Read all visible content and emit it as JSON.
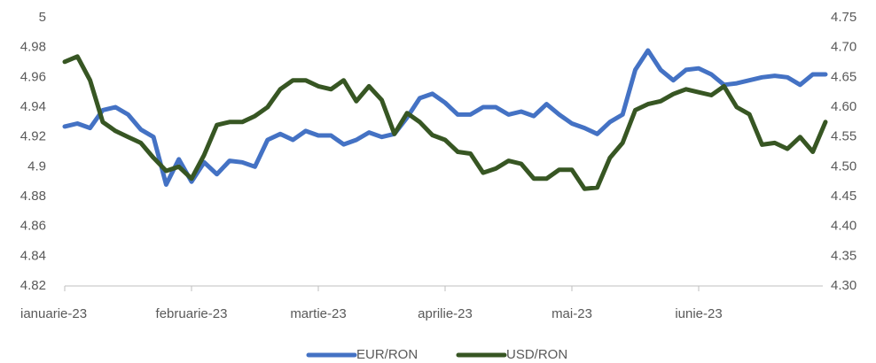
{
  "chart_data": {
    "type": "line",
    "categories": [
      "ianuarie-23",
      null,
      null,
      null,
      null,
      null,
      null,
      null,
      null,
      null,
      "februarie-23",
      null,
      null,
      null,
      null,
      null,
      null,
      null,
      null,
      null,
      "martie-23",
      null,
      null,
      null,
      null,
      null,
      null,
      null,
      null,
      null,
      "aprilie-23",
      null,
      null,
      null,
      null,
      null,
      null,
      null,
      null,
      null,
      "mai-23",
      null,
      null,
      null,
      null,
      null,
      null,
      null,
      null,
      null,
      "iunie-23",
      null,
      null,
      null,
      null,
      null,
      null,
      null,
      null,
      null,
      null
    ],
    "series": [
      {
        "name": "EUR/RON",
        "color": "#4472c4",
        "values": [
          4.927,
          4.929,
          4.926,
          4.938,
          4.94,
          4.935,
          4.925,
          4.92,
          4.888,
          4.905,
          4.89,
          4.903,
          4.895,
          4.904,
          4.903,
          4.9,
          4.918,
          4.922,
          4.918,
          4.924,
          4.921,
          4.921,
          4.915,
          4.918,
          4.923,
          4.92,
          4.922,
          4.933,
          4.946,
          4.949,
          4.943,
          4.935,
          4.935,
          4.94,
          4.94,
          4.935,
          4.937,
          4.934,
          4.942,
          4.935,
          4.929,
          4.926,
          4.922,
          4.93,
          4.935,
          4.965,
          4.978,
          4.965,
          4.958,
          4.965,
          4.966,
          4.962,
          4.955,
          4.956,
          4.958,
          4.96,
          4.961,
          4.96,
          4.955,
          4.962,
          4.962
        ]
      },
      {
        "name": "USD/RON",
        "color": "#375623",
        "axis": "y2",
        "values": [
          4.676,
          4.685,
          4.645,
          4.575,
          4.56,
          4.55,
          4.54,
          4.515,
          4.493,
          4.5,
          4.48,
          4.52,
          4.57,
          4.575,
          4.575,
          4.585,
          4.6,
          4.63,
          4.645,
          4.645,
          4.635,
          4.63,
          4.645,
          4.61,
          4.635,
          4.612,
          4.555,
          4.59,
          4.575,
          4.553,
          4.545,
          4.525,
          4.522,
          4.49,
          4.497,
          4.51,
          4.505,
          4.48,
          4.48,
          4.495,
          4.495,
          4.463,
          4.465,
          4.515,
          4.54,
          4.595,
          4.605,
          4.61,
          4.622,
          4.63,
          4.625,
          4.62,
          4.635,
          4.6,
          4.588,
          4.537,
          4.54,
          4.53,
          4.55,
          4.525,
          4.575
        ]
      }
    ],
    "ylim": [
      4.82,
      5
    ],
    "yticks": [
      4.82,
      4.84,
      4.86,
      4.88,
      4.9,
      4.92,
      4.94,
      4.96,
      4.98,
      5
    ],
    "y2lim": [
      4.3,
      4.75
    ],
    "y2ticks": [
      {
        "value": 4.3,
        "label": "4.30"
      },
      4.35,
      {
        "value": 4.4,
        "label": "4.40"
      },
      4.45,
      {
        "value": 4.5,
        "label": "4.50"
      },
      4.55,
      {
        "value": 4.6,
        "label": "4.60"
      },
      4.65,
      {
        "value": 4.7,
        "label": "4.70"
      },
      4.75
    ],
    "grid": false,
    "legend": "bottom"
  }
}
